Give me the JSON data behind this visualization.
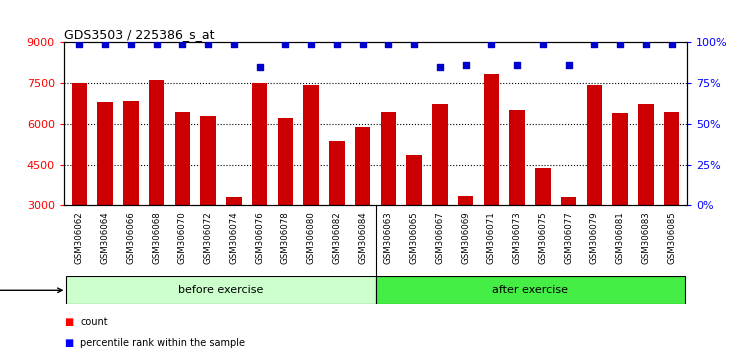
{
  "title": "GDS3503 / 225386_s_at",
  "categories": [
    "GSM306062",
    "GSM306064",
    "GSM306066",
    "GSM306068",
    "GSM306070",
    "GSM306072",
    "GSM306074",
    "GSM306076",
    "GSM306078",
    "GSM306080",
    "GSM306082",
    "GSM306084",
    "GSM306063",
    "GSM306065",
    "GSM306067",
    "GSM306069",
    "GSM306071",
    "GSM306073",
    "GSM306075",
    "GSM306077",
    "GSM306079",
    "GSM306081",
    "GSM306083",
    "GSM306085"
  ],
  "bar_values": [
    7520,
    6820,
    6850,
    7620,
    6430,
    6280,
    3300,
    7520,
    6200,
    7450,
    5380,
    5880,
    6450,
    4870,
    6720,
    3360,
    7850,
    6520,
    4380,
    3300,
    7430,
    6420,
    6720,
    6450
  ],
  "percentile_values": [
    99,
    99,
    99,
    99,
    99,
    99,
    99,
    85,
    99,
    99,
    99,
    99,
    99,
    99,
    85,
    86,
    99,
    86,
    99,
    86,
    99,
    99,
    99,
    99
  ],
  "n_before": 12,
  "n_after": 12,
  "bar_color": "#cc0000",
  "percentile_color": "#0000cc",
  "before_color": "#ccffcc",
  "after_color": "#44ee44",
  "ylim_left": [
    3000,
    9000
  ],
  "ylim_right": [
    0,
    100
  ],
  "yticks_left": [
    3000,
    4500,
    6000,
    7500,
    9000
  ],
  "yticks_right": [
    0,
    25,
    50,
    75,
    100
  ],
  "grid_values": [
    4500,
    6000,
    7500
  ],
  "background_color": "#ffffff",
  "ticklabel_bg": "#d8d8d8"
}
